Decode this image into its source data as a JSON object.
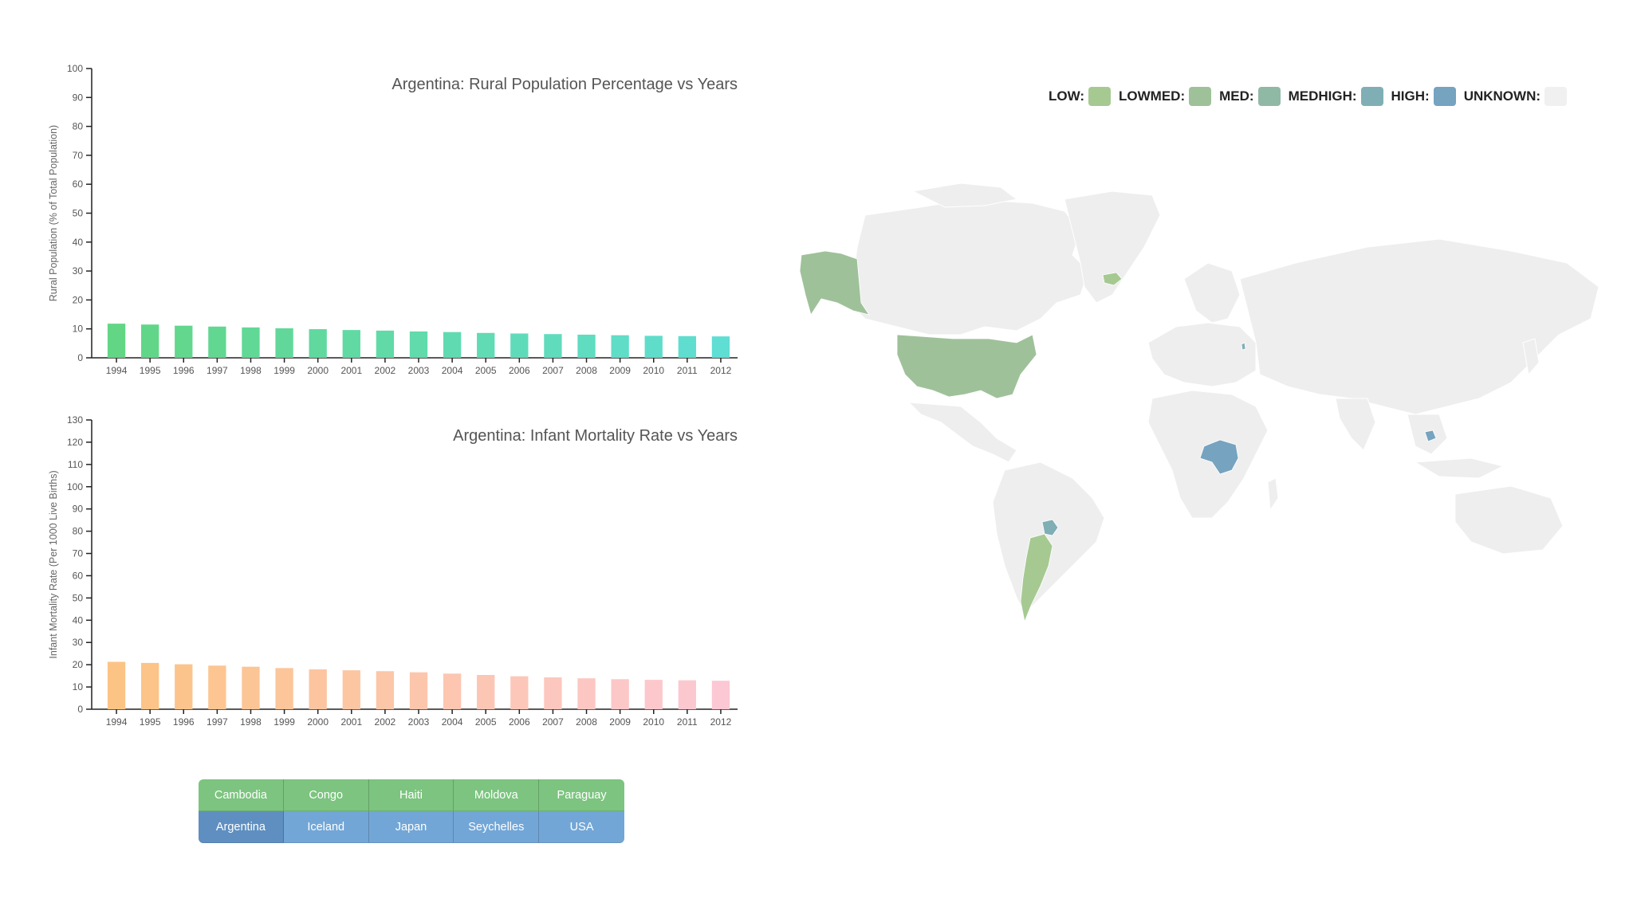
{
  "legend": {
    "items": [
      {
        "label": "LOW:",
        "color": "#a6c992"
      },
      {
        "label": "LOWMED:",
        "color": "#9fc19a"
      },
      {
        "label": "MED:",
        "color": "#90b9a5"
      },
      {
        "label": "MEDHIGH:",
        "color": "#80aeb5"
      },
      {
        "label": "HIGH:",
        "color": "#76a3bf"
      },
      {
        "label": "UNKNOWN:",
        "color": "#f0f0f0"
      }
    ]
  },
  "buttons": {
    "row1": [
      "Cambodia",
      "Congo",
      "Haiti",
      "Moldova",
      "Paraguay"
    ],
    "row2": [
      "Argentina",
      "Iceland",
      "Japan",
      "Seychelles",
      "USA"
    ]
  },
  "map": {
    "land_color": "#eeeeee",
    "highlight": [
      {
        "country": "Alaska (USA)",
        "color": "#9fc19a"
      },
      {
        "country": "USA",
        "color": "#9fc19a"
      },
      {
        "country": "Iceland",
        "color": "#a6c992"
      },
      {
        "country": "Argentina",
        "color": "#a6c992"
      },
      {
        "country": "Paraguay",
        "color": "#80aeb5"
      },
      {
        "country": "Congo",
        "color": "#76a3bf"
      },
      {
        "country": "Cambodia",
        "color": "#76a3bf"
      },
      {
        "country": "Moldova",
        "color": "#80aeb5"
      }
    ]
  },
  "chart_data": [
    {
      "type": "bar",
      "title": "Argentina: Rural Population Percentage vs Years",
      "xlabel": "",
      "ylabel": "Rural Population (% of Total Population)",
      "ylim": [
        0,
        100
      ],
      "yticks": [
        0,
        10,
        20,
        30,
        40,
        50,
        60,
        70,
        80,
        90,
        100
      ],
      "categories": [
        "1994",
        "1995",
        "1996",
        "1997",
        "1998",
        "1999",
        "2000",
        "2001",
        "2002",
        "2003",
        "2004",
        "2005",
        "2006",
        "2007",
        "2008",
        "2009",
        "2010",
        "2011",
        "2012"
      ],
      "values": [
        11.8,
        11.5,
        11.1,
        10.8,
        10.5,
        10.2,
        9.9,
        9.6,
        9.4,
        9.1,
        8.9,
        8.6,
        8.4,
        8.2,
        8.0,
        7.8,
        7.6,
        7.5,
        7.4
      ],
      "color_start": "#62d684",
      "color_end": "#5fded3",
      "grid": false
    },
    {
      "type": "bar",
      "title": "Argentina: Infant Mortality Rate vs Years",
      "xlabel": "",
      "ylabel": "Infant Mortality Rate (Per 1000 Live Births)",
      "ylim": [
        0,
        130
      ],
      "yticks": [
        0,
        10,
        20,
        30,
        40,
        50,
        60,
        70,
        80,
        90,
        100,
        110,
        120,
        130
      ],
      "categories": [
        "1994",
        "1995",
        "1996",
        "1997",
        "1998",
        "1999",
        "2000",
        "2001",
        "2002",
        "2003",
        "2004",
        "2005",
        "2006",
        "2007",
        "2008",
        "2009",
        "2010",
        "2011",
        "2012"
      ],
      "values": [
        21.3,
        20.8,
        20.2,
        19.6,
        19.1,
        18.5,
        17.9,
        17.5,
        17.1,
        16.6,
        16.0,
        15.4,
        14.8,
        14.3,
        13.9,
        13.5,
        13.2,
        13.0,
        12.8
      ],
      "color_start": "#fcc484",
      "color_end": "#fcc8d4",
      "grid": false
    }
  ]
}
